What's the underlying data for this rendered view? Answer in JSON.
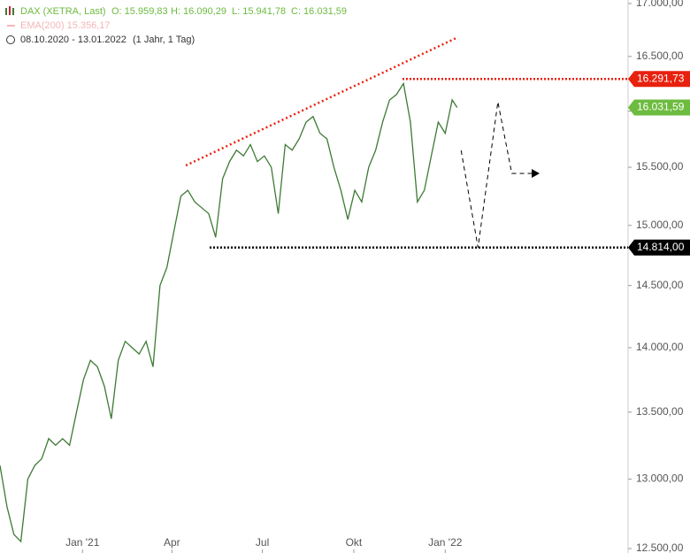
{
  "chart_data": {
    "type": "line",
    "title": "DAX (XETRA, Last)",
    "ohlc": [
      "O: 15.959,83",
      "H: 16.090,29",
      "L: 15.941,78",
      "C: 16.031,59"
    ],
    "indicator": "EMA(200)  15.356,17",
    "period": "08.10.2020 - 13.01.2022",
    "interval": "(1 Jahr, 1 Tag)",
    "log_scale": true,
    "xlim": [
      2,
      634
    ],
    "ylim": [
      12500,
      17000
    ],
    "xticks": [
      {
        "value": 85,
        "label": "Jan '21"
      },
      {
        "value": 175,
        "label": "Apr"
      },
      {
        "value": 266,
        "label": "Jul"
      },
      {
        "value": 358,
        "label": "Okt"
      },
      {
        "value": 450,
        "label": "Jan '22"
      }
    ],
    "yticks": [
      {
        "value": 12500,
        "label": "12.500,00"
      },
      {
        "value": 13000,
        "label": "13.000,00"
      },
      {
        "value": 13500,
        "label": "13.500,00"
      },
      {
        "value": 14000,
        "label": "14.000,00"
      },
      {
        "value": 14500,
        "label": "14.500,00"
      },
      {
        "value": 15000,
        "label": "15.000,00"
      },
      {
        "value": 15500,
        "label": "15.500,00"
      },
      {
        "value": 16000,
        "label": "16.000,00"
      },
      {
        "value": 16500,
        "label": "16.500,00"
      },
      {
        "value": 17000,
        "label": "17.000,00"
      }
    ],
    "series": [
      {
        "name": "DAX",
        "color": "#3d7a34",
        "x": [
          2,
          9,
          16,
          23,
          30,
          37,
          44,
          51,
          58,
          65,
          72,
          79,
          86,
          93,
          100,
          107,
          114,
          121,
          128,
          135,
          142,
          149,
          156,
          163,
          170,
          177,
          184,
          191,
          198,
          205,
          212,
          219,
          226,
          233,
          240,
          247,
          254,
          261,
          268,
          275,
          282,
          289,
          296,
          303,
          310,
          317,
          324,
          331,
          338,
          345,
          352,
          359,
          366,
          373,
          380,
          387,
          394,
          401,
          408,
          415,
          422,
          429,
          436,
          443,
          450,
          457,
          462
        ],
        "values": [
          13100,
          12800,
          12600,
          12550,
          13000,
          13100,
          13150,
          13300,
          13250,
          13300,
          13250,
          13500,
          13750,
          13900,
          13850,
          13700,
          13450,
          13900,
          14050,
          14000,
          13950,
          14050,
          13850,
          14500,
          14650,
          14950,
          15250,
          15300,
          15200,
          15150,
          15100,
          14900,
          15400,
          15550,
          15650,
          15600,
          15700,
          15550,
          15600,
          15500,
          15100,
          15700,
          15650,
          15750,
          15900,
          15950,
          15800,
          15750,
          15500,
          15300,
          15050,
          15300,
          15200,
          15500,
          15650,
          15900,
          16100,
          16150,
          16250,
          15900,
          15200,
          15300,
          15600,
          15900,
          15800,
          16100,
          16031.59
        ]
      }
    ],
    "levels": [
      {
        "value": 16291.73,
        "label": "16.291,73",
        "color": "#e8210f",
        "start": 407
      },
      {
        "value": 16031.59,
        "label": "16.031,59",
        "color": "#6dbb3f"
      },
      {
        "value": 14814,
        "label": "14.814,00",
        "color": "#000000",
        "start": 213
      }
    ],
    "trendline": {
      "color": "#e8210f",
      "x": [
        189,
        461
      ],
      "values": [
        15516,
        16672
      ]
    },
    "projection": {
      "color": "#000000",
      "x": [
        466,
        483,
        503,
        517,
        537
      ],
      "values": [
        15648,
        14814,
        16083,
        15446,
        15446
      ]
    }
  }
}
